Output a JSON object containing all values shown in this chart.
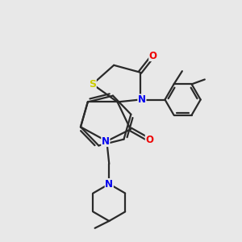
{
  "bg_color": "#e8e8e8",
  "bond_color": "#2a2a2a",
  "N_color": "#0000ee",
  "O_color": "#ee0000",
  "S_color": "#cccc00",
  "line_width": 1.6,
  "figsize": [
    3.0,
    3.0
  ],
  "dpi": 100,
  "xlim": [
    0,
    10
  ],
  "ylim": [
    0,
    10
  ]
}
